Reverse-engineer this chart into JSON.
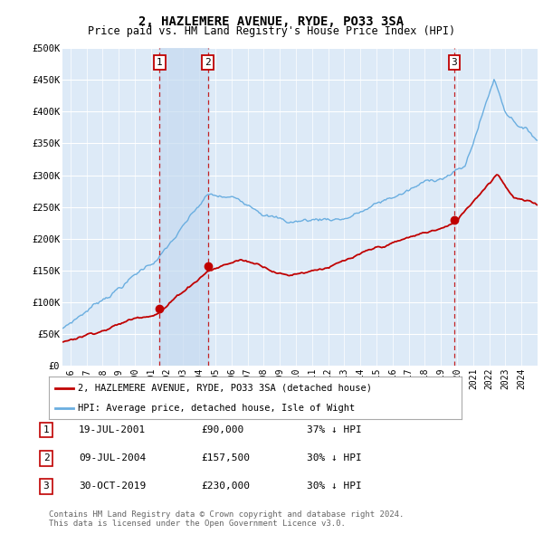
{
  "title": "2, HAZLEMERE AVENUE, RYDE, PO33 3SA",
  "subtitle": "Price paid vs. HM Land Registry's House Price Index (HPI)",
  "title_fontsize": 10,
  "subtitle_fontsize": 8.5,
  "background_color": "#ffffff",
  "plot_bg_color": "#ddeaf7",
  "grid_color": "#ffffff",
  "ylabel_ticks": [
    "£0",
    "£50K",
    "£100K",
    "£150K",
    "£200K",
    "£250K",
    "£300K",
    "£350K",
    "£400K",
    "£450K",
    "£500K"
  ],
  "ytick_vals": [
    0,
    50000,
    100000,
    150000,
    200000,
    250000,
    300000,
    350000,
    400000,
    450000,
    500000
  ],
  "xmin": 1995.5,
  "xmax": 2025.0,
  "ymin": 0,
  "ymax": 500000,
  "sale_dates": [
    2001.54,
    2004.52,
    2019.83
  ],
  "sale_prices": [
    90000,
    157500,
    230000
  ],
  "sale_labels": [
    "1",
    "2",
    "3"
  ],
  "hpi_color": "#6aaee0",
  "price_color": "#c00000",
  "shade_color": "#c5daf0",
  "legend_label_price": "2, HAZLEMERE AVENUE, RYDE, PO33 3SA (detached house)",
  "legend_label_hpi": "HPI: Average price, detached house, Isle of Wight",
  "table_rows": [
    {
      "num": "1",
      "date": "19-JUL-2001",
      "price": "£90,000",
      "hpi": "37% ↓ HPI"
    },
    {
      "num": "2",
      "date": "09-JUL-2004",
      "price": "£157,500",
      "hpi": "30% ↓ HPI"
    },
    {
      "num": "3",
      "date": "30-OCT-2019",
      "price": "£230,000",
      "hpi": "30% ↓ HPI"
    }
  ],
  "footnote": "Contains HM Land Registry data © Crown copyright and database right 2024.\nThis data is licensed under the Open Government Licence v3.0.",
  "xtick_years": [
    1996,
    1997,
    1998,
    1999,
    2000,
    2001,
    2002,
    2003,
    2004,
    2005,
    2006,
    2007,
    2008,
    2009,
    2010,
    2011,
    2012,
    2013,
    2014,
    2015,
    2016,
    2017,
    2018,
    2019,
    2020,
    2021,
    2022,
    2023,
    2024
  ]
}
